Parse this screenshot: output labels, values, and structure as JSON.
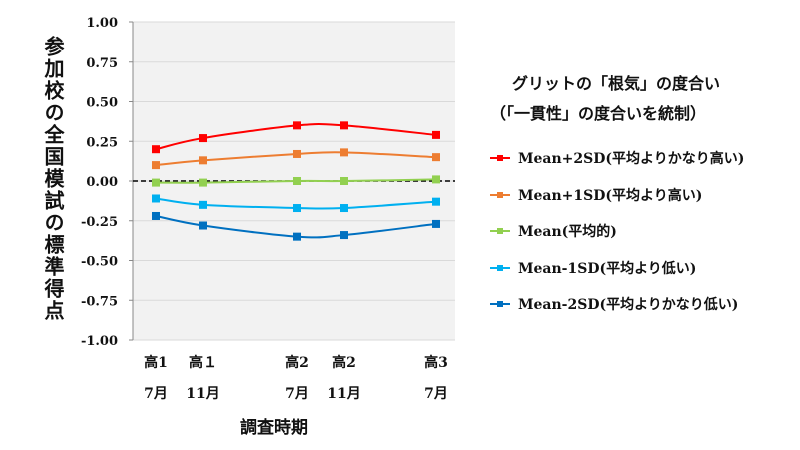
{
  "chart_data": {
    "type": "line",
    "title": "",
    "ylabel": "参加校の全国模試の標準得点",
    "xlabel": "調査時期",
    "ylim": [
      -1.0,
      1.0
    ],
    "yticks": [
      "1.00",
      "0.75",
      "0.50",
      "0.25",
      "0.00",
      "-0.25",
      "-0.50",
      "-0.75",
      "-1.00"
    ],
    "grid": true,
    "reference_line": {
      "y": 0,
      "style": "dashed"
    },
    "categories": [
      {
        "line1": "高1",
        "line2": "7月"
      },
      {
        "line1": "高１",
        "line2": "11月"
      },
      {
        "line1": "高2",
        "line2": "7月"
      },
      {
        "line1": "高2",
        "line2": "11月"
      },
      {
        "line1": "高3",
        "line2": "7月"
      }
    ],
    "legend": {
      "position": "right",
      "title_line1": "グリットの「根気」の度合い",
      "title_line2": "（「一貫性」の度合いを統制）"
    },
    "series": [
      {
        "name": "Mean+2SD(平均よりかなり高い)",
        "color": "#ff0000",
        "values": [
          0.2,
          0.27,
          0.35,
          0.35,
          0.29
        ]
      },
      {
        "name": "Mean+1SD(平均より高い)",
        "color": "#ed7d31",
        "values": [
          0.1,
          0.13,
          0.17,
          0.18,
          0.15
        ]
      },
      {
        "name": "Mean(平均的)",
        "color": "#92d050",
        "values": [
          -0.01,
          -0.01,
          0.0,
          0.0,
          0.01
        ]
      },
      {
        "name": "Mean-1SD(平均より低い)",
        "color": "#00b0f0",
        "values": [
          -0.11,
          -0.15,
          -0.17,
          -0.17,
          -0.13
        ]
      },
      {
        "name": "Mean-2SD(平均よりかなり低い)",
        "color": "#0070c0",
        "values": [
          -0.22,
          -0.28,
          -0.35,
          -0.34,
          -0.27
        ]
      }
    ]
  }
}
